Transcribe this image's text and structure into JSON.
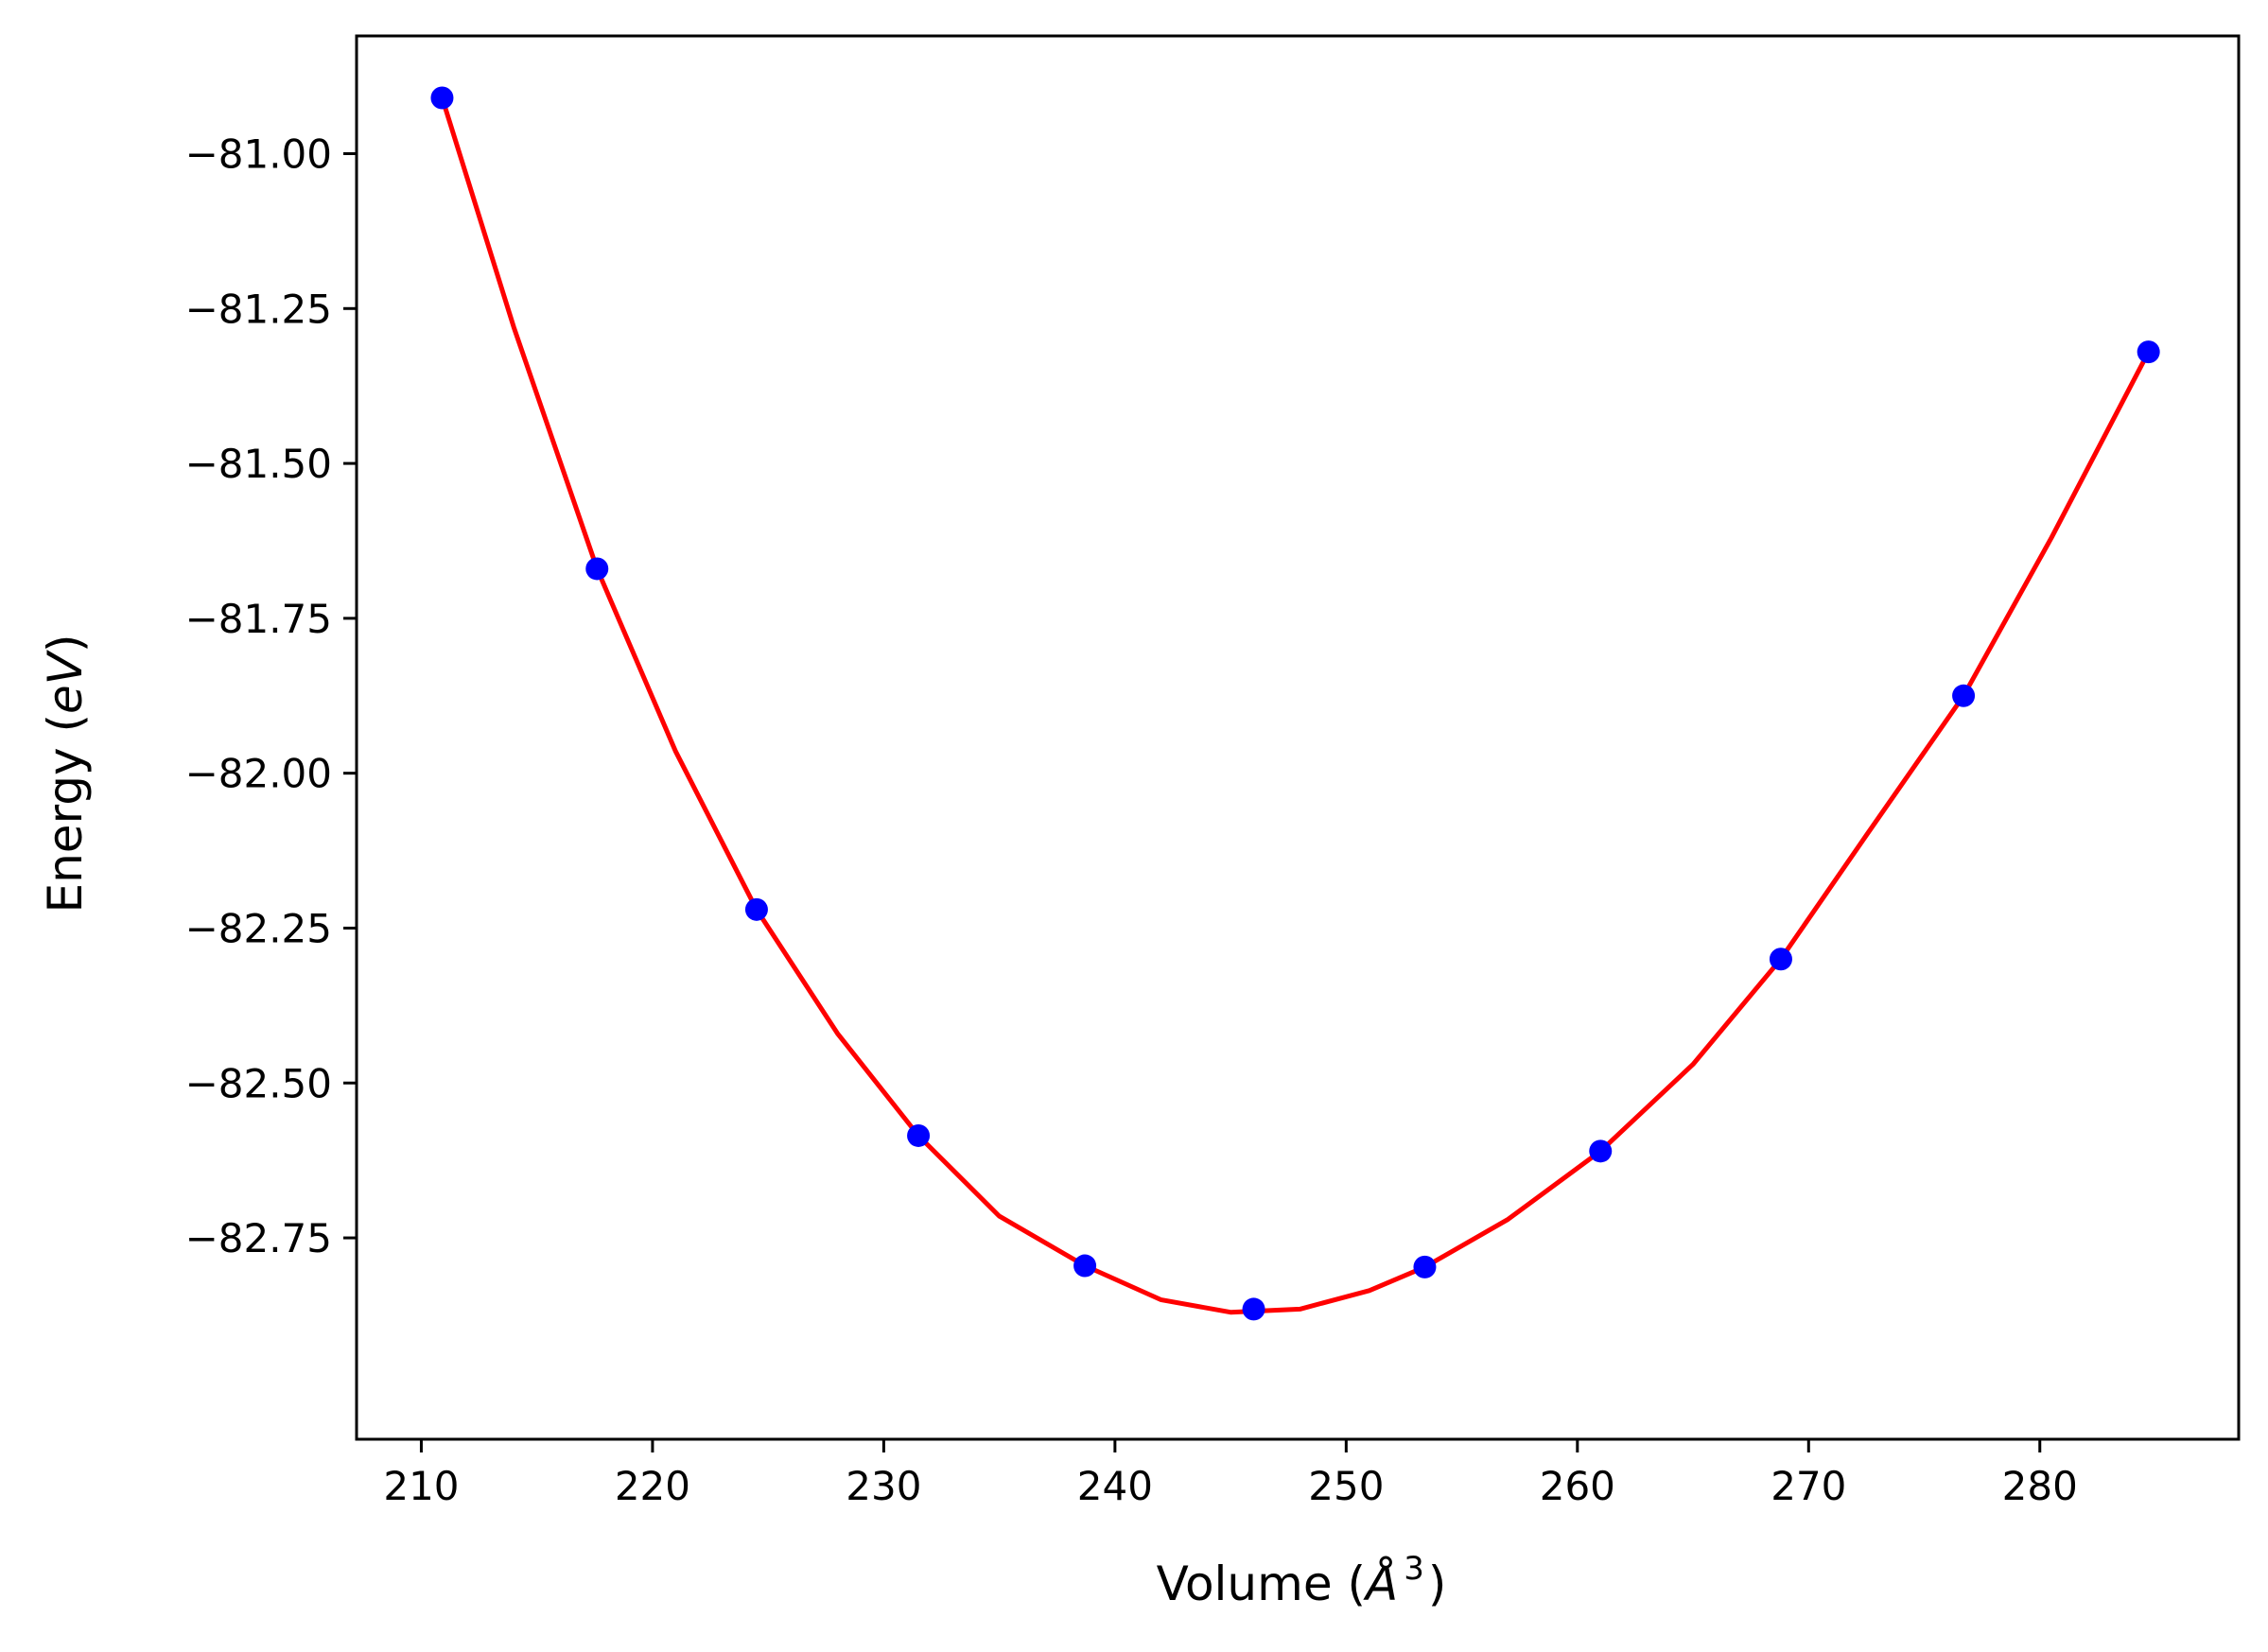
{
  "chart_data": {
    "type": "line",
    "xlabel_parts": {
      "prefix": "Volume (",
      "unit": "Å",
      "exp": "3",
      "suffix": ")"
    },
    "ylabel_parts": {
      "prefix": "Energy (",
      "unit": "eV",
      "suffix": ")"
    },
    "xlim": [
      207.2,
      288.6
    ],
    "ylim": [
      -83.075,
      -80.81
    ],
    "x_ticks": [
      210,
      220,
      230,
      240,
      250,
      260,
      270,
      280
    ],
    "x_tick_labels": [
      "210",
      "220",
      "230",
      "240",
      "250",
      "260",
      "270",
      "280"
    ],
    "y_ticks": [
      -81.0,
      -81.25,
      -81.5,
      -81.75,
      -82.0,
      -82.25,
      -82.5,
      -82.75
    ],
    "y_tick_labels": [
      "−81.00",
      "−81.25",
      "−81.50",
      "−81.75",
      "−82.00",
      "−82.25",
      "−82.50",
      "−82.75"
    ],
    "grid": false,
    "series": [
      {
        "kind": "scatter",
        "color": "#0000ff",
        "x": [
          210.9,
          217.6,
          224.5,
          231.5,
          238.7,
          246.0,
          253.4,
          261.0,
          268.8,
          276.7,
          284.7
        ],
        "y": [
          -80.91,
          -81.67,
          -82.22,
          -82.585,
          -82.795,
          -82.865,
          -82.797,
          -82.61,
          -82.3,
          -81.875,
          -81.32
        ]
      },
      {
        "kind": "line",
        "color": "#ff0000",
        "x": [
          210.9,
          214.0,
          217.6,
          221.0,
          224.5,
          228.0,
          231.5,
          235.0,
          238.7,
          242.0,
          245.0,
          248.0,
          251.0,
          253.4,
          257.0,
          261.0,
          265.0,
          268.8,
          272.5,
          276.7,
          280.5,
          284.7
        ],
        "y": [
          -80.91,
          -81.28,
          -81.67,
          -81.965,
          -82.22,
          -82.42,
          -82.585,
          -82.715,
          -82.795,
          -82.85,
          -82.87,
          -82.865,
          -82.835,
          -82.797,
          -82.72,
          -82.61,
          -82.47,
          -82.3,
          -82.1,
          -81.875,
          -81.62,
          -81.32
        ]
      }
    ]
  }
}
